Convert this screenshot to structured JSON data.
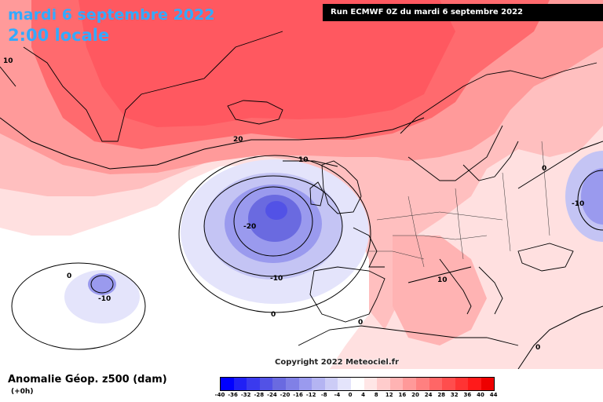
{
  "title": {
    "date": "mardi 6 septembre 2022",
    "time": "2:00 locale"
  },
  "run_info": "Run ECMWF 0Z du mardi 6 septembre 2022",
  "copyright": "Copyright 2022 Meteociel.fr",
  "field": {
    "name": "Anomalie Géop. z500 (dam)",
    "lead_time": "(+0h)"
  },
  "legend": {
    "ticks": [
      "-40",
      "-36",
      "-32",
      "-28",
      "-24",
      "-20",
      "-16",
      "-12",
      "-8",
      "-4",
      "0",
      "4",
      "8",
      "12",
      "16",
      "20",
      "24",
      "28",
      "32",
      "36",
      "40",
      "44"
    ],
    "colors": [
      "#0000ff",
      "#2020f5",
      "#3a3aee",
      "#5252e6",
      "#6a6ae0",
      "#8080e6",
      "#9a9aee",
      "#b4b4f2",
      "#ccccf6",
      "#e4e4fb",
      "#ffffff",
      "#ffe6e6",
      "#ffcccc",
      "#ffb3b3",
      "#ff9999",
      "#ff8080",
      "#ff6666",
      "#ff4d4d",
      "#ff3333",
      "#ff1a1a",
      "#ee0000"
    ]
  },
  "contour_labels": [
    "10",
    "20",
    "10",
    "-20",
    "-10",
    "0",
    "-10",
    "0",
    "10",
    "0",
    "-10",
    "0",
    "0"
  ],
  "anomaly_colors": {
    "strong_positive": "#ff4d55",
    "positive": "#ff8080",
    "weak_positive": "#ffb3b3",
    "very_weak_positive": "#ffe0e0",
    "neutral": "#ffffff",
    "weak_negative": "#d8d8f8",
    "negative": "#9a9aee",
    "strong_negative": "#5252e6"
  }
}
